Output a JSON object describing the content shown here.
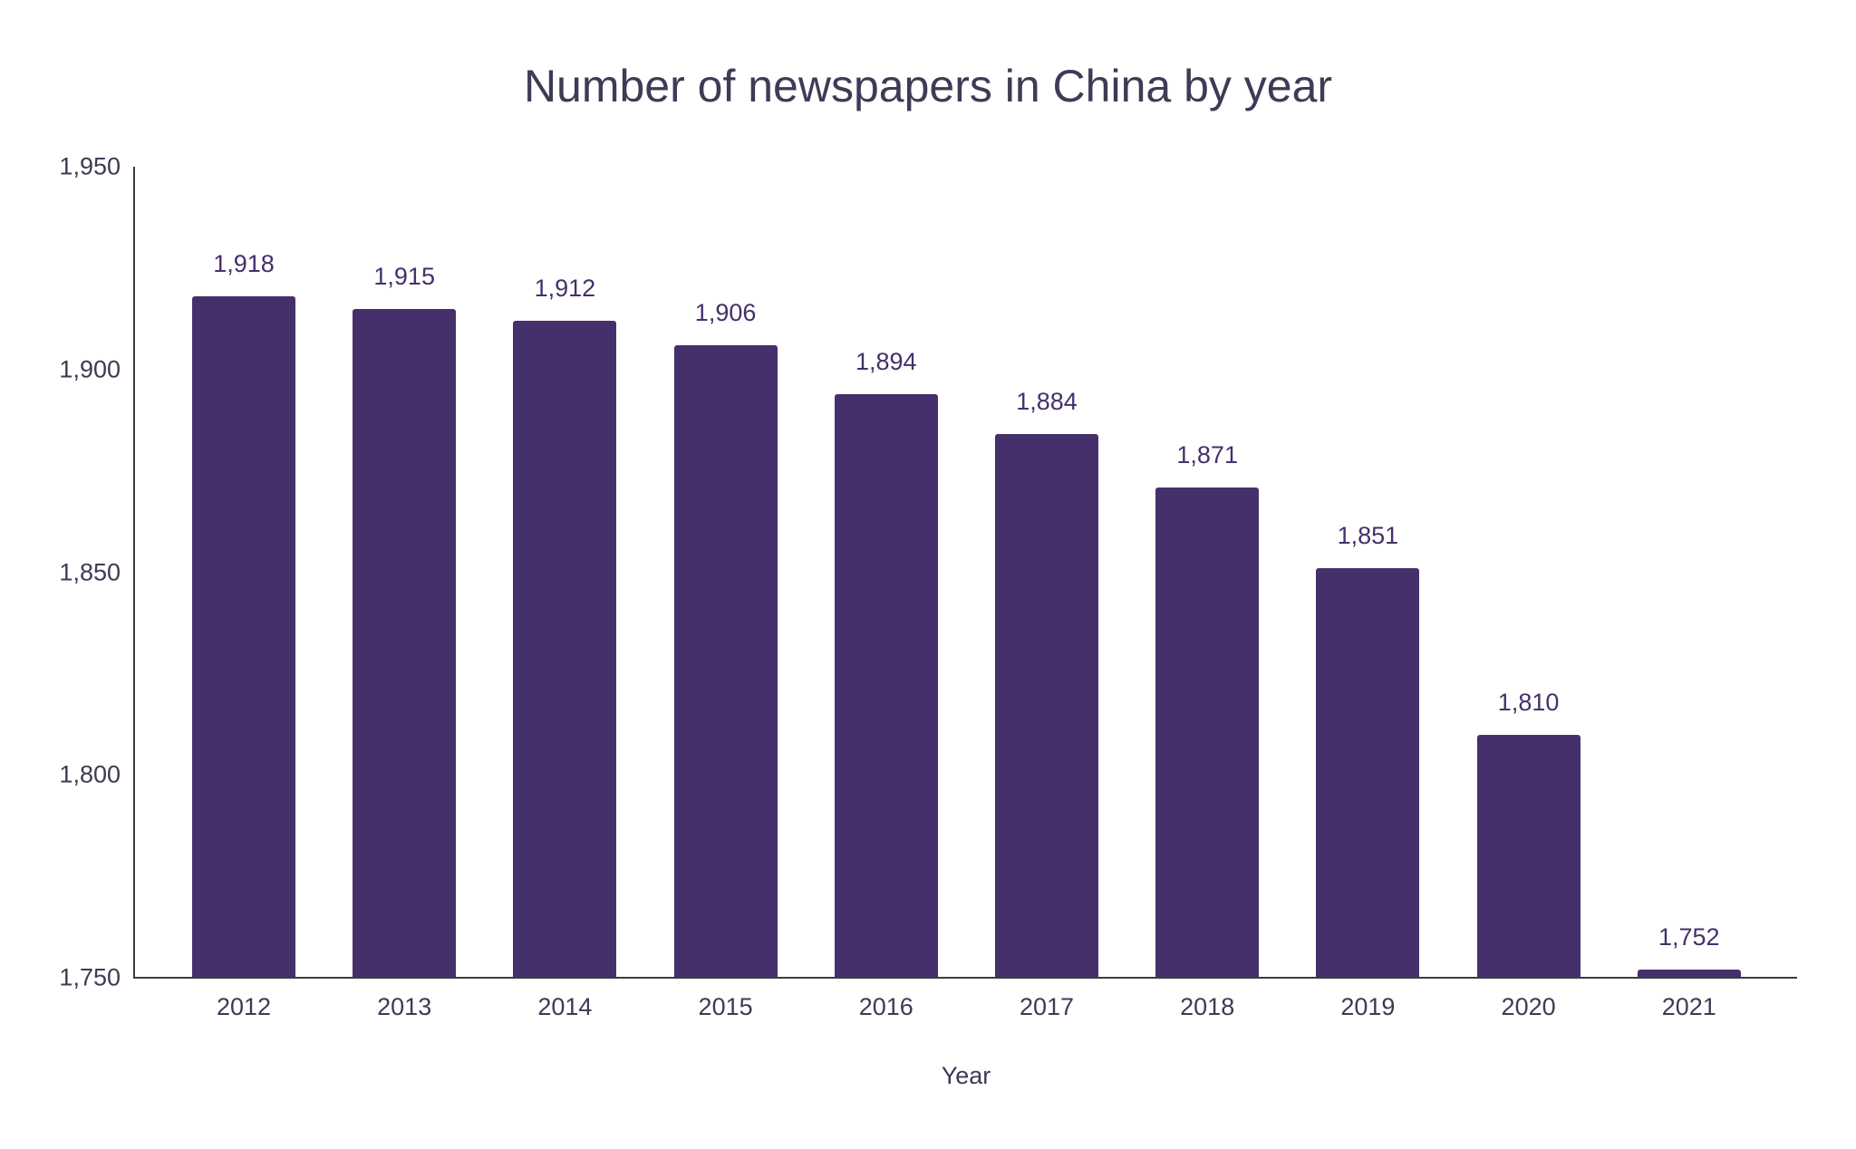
{
  "chart_data": {
    "type": "bar",
    "title": "Number of newspapers in China by year",
    "xlabel": "Year",
    "ylabel": "",
    "categories": [
      "2012",
      "2013",
      "2014",
      "2015",
      "2016",
      "2017",
      "2018",
      "2019",
      "2020",
      "2021"
    ],
    "values": [
      1918,
      1915,
      1912,
      1906,
      1894,
      1884,
      1871,
      1851,
      1810,
      1752
    ],
    "value_labels": [
      "1,918",
      "1,915",
      "1,912",
      "1,906",
      "1,894",
      "1,884",
      "1,871",
      "1,851",
      "1,810",
      "1,752"
    ],
    "ylim": [
      1750,
      1950
    ],
    "yticks": [
      "1,750",
      "1,800",
      "1,850",
      "1,900",
      "1,950"
    ],
    "ytick_values": [
      1750,
      1800,
      1850,
      1900,
      1950
    ],
    "grid": false,
    "legend": null,
    "bar_color": "#45306b"
  }
}
